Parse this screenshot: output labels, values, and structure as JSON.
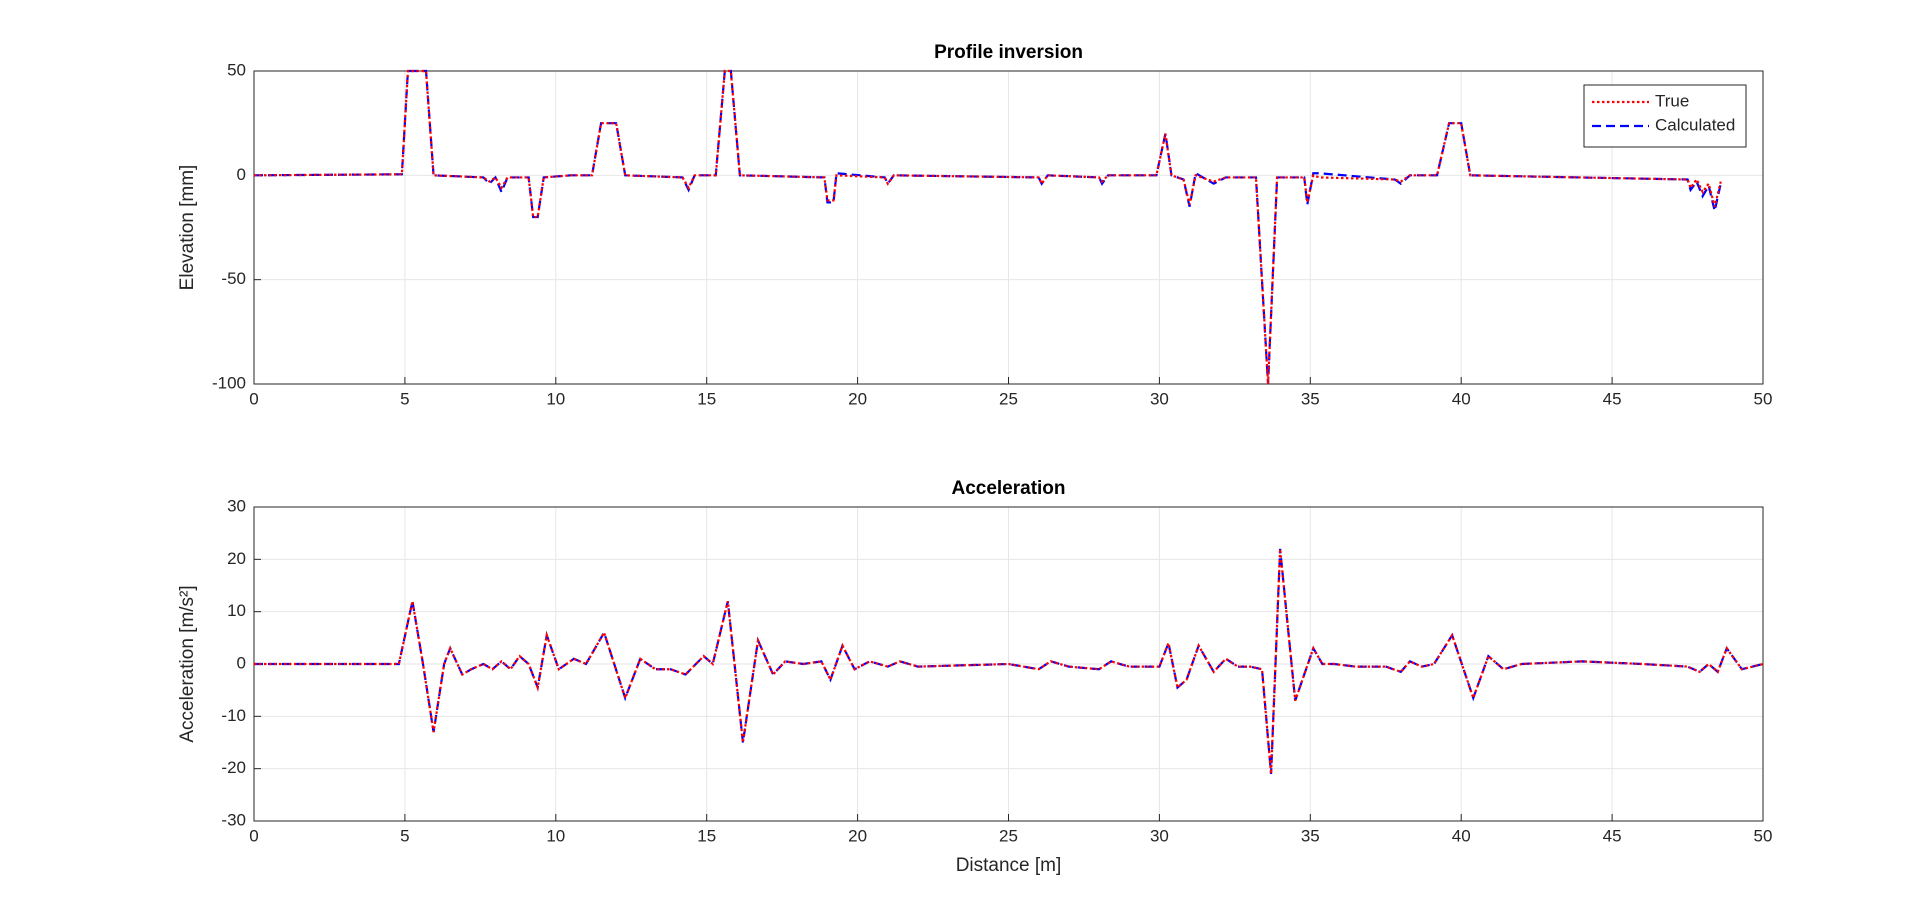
{
  "chart_data": [
    {
      "type": "line",
      "title": "Profile inversion",
      "y_label": "Elevation [mm]",
      "x": [
        0,
        4.9,
        5.1,
        5.7,
        5.95,
        7.6,
        7.8,
        8.0,
        8.2,
        8.4,
        9.1,
        9.25,
        9.4,
        9.6,
        10.5,
        11.2,
        11.5,
        12.0,
        12.3,
        14.2,
        14.4,
        14.6,
        15.3,
        15.6,
        15.8,
        16.1,
        18.9,
        19.0,
        19.2,
        19.3,
        20.9,
        21.0,
        21.2,
        26.0,
        26.1,
        26.3,
        28.0,
        28.1,
        28.3,
        29.9,
        30.2,
        30.4,
        30.8,
        31.0,
        31.2,
        31.8,
        32.2,
        33.2,
        33.6,
        33.9,
        34.8,
        34.9,
        35.1,
        35.3,
        37.8,
        38.0,
        38.3,
        39.2,
        39.6,
        40.0,
        40.3,
        47.5,
        47.6,
        47.8,
        48.0,
        48.2,
        48.4,
        48.6
      ],
      "series": [
        {
          "name": "Calculated",
          "color": "#0000ff",
          "dash": "dashed",
          "values": [
            0,
            0.5,
            50,
            50,
            0,
            -1,
            -4,
            -1,
            -8,
            -1,
            -1,
            -20,
            -20,
            -1,
            0,
            0,
            25,
            25,
            0,
            -1,
            -7,
            0,
            0,
            50,
            50,
            0,
            -1,
            -13,
            -13,
            1,
            -1,
            -4,
            0,
            -1,
            -4,
            0,
            -1,
            -4,
            0,
            0,
            20,
            0,
            -2,
            -15,
            1,
            -4,
            -1,
            -1,
            -100,
            -1,
            -1,
            -14,
            1,
            1,
            -2,
            -4,
            0,
            0,
            25,
            25,
            0,
            -2,
            -7,
            -3,
            -10,
            -5,
            -17,
            -4
          ]
        },
        {
          "name": "True",
          "color": "#ff0000",
          "dash": "dotted",
          "values": [
            0,
            0.5,
            50,
            50,
            0,
            -1,
            -3,
            -1,
            -6,
            -1,
            -1,
            -20,
            -20,
            -1,
            0,
            0,
            25,
            25,
            0,
            -1,
            -6,
            0,
            0,
            50,
            50,
            0,
            -1,
            -12,
            -12,
            0,
            -1,
            -4,
            0,
            -1,
            -4,
            0,
            -1,
            -3,
            0,
            0,
            20,
            0,
            -2,
            -14,
            0,
            -3,
            -1,
            -1,
            -100,
            -1,
            -1,
            -13,
            0,
            -1,
            -2,
            -3,
            0,
            0,
            25,
            25,
            0,
            -2,
            -6,
            -2,
            -8,
            -4,
            -15,
            -3
          ]
        }
      ],
      "xlim": [
        0,
        50
      ],
      "xticks": [
        0,
        5,
        10,
        15,
        20,
        25,
        30,
        35,
        40,
        45,
        50
      ],
      "ylim": [
        -100,
        50
      ],
      "yticks": [
        -100,
        -50,
        0,
        50
      ],
      "grid": true,
      "legend": "upper right"
    },
    {
      "type": "line",
      "title": "Acceleration",
      "x_label": "Distance [m]",
      "y_label": "Acceleration [m/s²]",
      "x": [
        0,
        4.8,
        5.25,
        5.6,
        5.95,
        6.3,
        6.5,
        6.9,
        7.2,
        7.6,
        7.9,
        8.2,
        8.5,
        8.8,
        9.1,
        9.4,
        9.7,
        10.1,
        10.6,
        11.0,
        11.6,
        12.3,
        12.8,
        13.3,
        13.8,
        14.3,
        14.9,
        15.2,
        15.7,
        16.2,
        16.7,
        17.2,
        17.6,
        18.2,
        18.8,
        19.1,
        19.5,
        19.9,
        20.4,
        21.0,
        21.4,
        22.0,
        25.0,
        26.0,
        26.4,
        27.0,
        28.0,
        28.4,
        29.0,
        30.0,
        30.3,
        30.6,
        30.9,
        31.3,
        31.8,
        32.2,
        32.6,
        33.0,
        33.4,
        33.7,
        34.0,
        34.5,
        35.1,
        35.4,
        35.8,
        36.5,
        37.5,
        38.0,
        38.3,
        38.7,
        39.1,
        39.7,
        40.4,
        40.9,
        41.4,
        42.0,
        44.0,
        46.0,
        47.5,
        47.9,
        48.2,
        48.5,
        48.8,
        49.3,
        50
      ],
      "series": [
        {
          "name": "Calculated",
          "color": "#0000ff",
          "dash": "dashed",
          "values": [
            0,
            0,
            12,
            0,
            -13,
            0,
            3,
            -2,
            -1,
            0,
            -1,
            0.5,
            -1,
            1.5,
            0,
            -4.5,
            5.5,
            -1,
            1,
            0,
            6,
            -6.5,
            1,
            -1,
            -1,
            -2,
            1.5,
            0,
            12,
            -15,
            4.5,
            -2,
            0.5,
            0,
            0.5,
            -3,
            3.5,
            -1,
            0.5,
            -0.5,
            0.5,
            -0.5,
            0,
            -1,
            0.5,
            -0.5,
            -1,
            0.5,
            -0.5,
            -0.5,
            4,
            -4.5,
            -3,
            3.5,
            -1.5,
            1,
            -0.5,
            -0.5,
            -1,
            -21,
            22,
            -7,
            3,
            0,
            0,
            -0.5,
            -0.5,
            -1.5,
            0.5,
            -0.5,
            0,
            5.5,
            -6.5,
            1.5,
            -1,
            0,
            0.5,
            0,
            -0.5,
            -1.5,
            0,
            -1.5,
            3,
            -1,
            0
          ]
        },
        {
          "name": "True",
          "color": "#ff0000",
          "dash": "dotted",
          "values": [
            0,
            0,
            12,
            0,
            -13,
            0,
            3,
            -2,
            -1,
            0,
            -1,
            0.5,
            -1,
            1.5,
            0,
            -4.5,
            5.5,
            -1,
            1,
            0,
            6,
            -6.5,
            1,
            -1,
            -1,
            -2,
            1.5,
            0,
            12,
            -15,
            4.5,
            -2,
            0.5,
            0,
            0.5,
            -3,
            3.5,
            -1,
            0.5,
            -0.5,
            0.5,
            -0.5,
            0,
            -1,
            0.5,
            -0.5,
            -1,
            0.5,
            -0.5,
            -0.5,
            4,
            -4.5,
            -3,
            3.5,
            -1.5,
            1,
            -0.5,
            -0.5,
            -1,
            -21,
            22,
            -7,
            3,
            0,
            0,
            -0.5,
            -0.5,
            -1.5,
            0.5,
            -0.5,
            0,
            5.5,
            -6.5,
            1.5,
            -1,
            0,
            0.5,
            0,
            -0.5,
            -1.5,
            0,
            -1.5,
            3,
            -1,
            0
          ]
        }
      ],
      "xlim": [
        0,
        50
      ],
      "xticks": [
        0,
        5,
        10,
        15,
        20,
        25,
        30,
        35,
        40,
        45,
        50
      ],
      "ylim": [
        -30,
        30
      ],
      "yticks": [
        -30,
        -20,
        -10,
        0,
        10,
        20,
        30
      ],
      "grid": true
    }
  ]
}
